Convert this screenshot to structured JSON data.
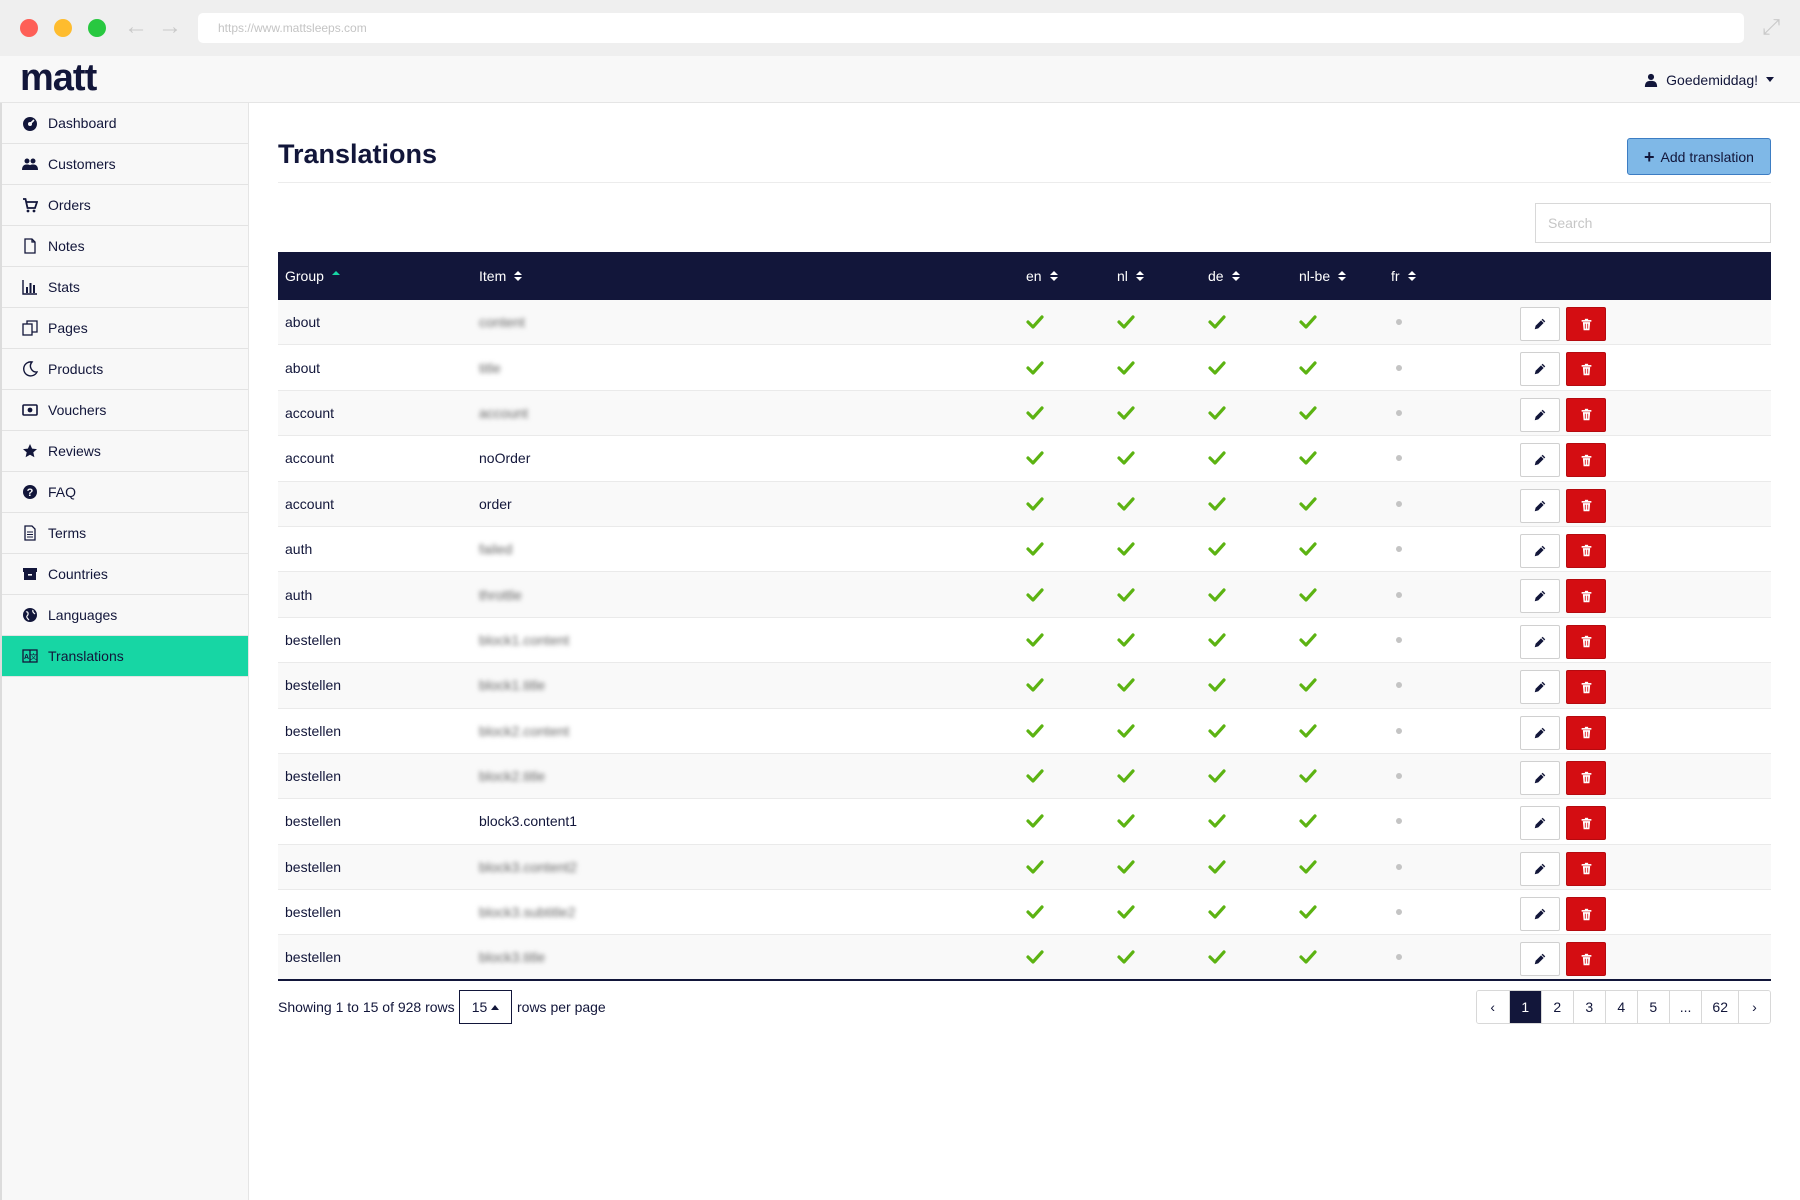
{
  "browser": {
    "url": "https://www.mattsleeps.com"
  },
  "header": {
    "logo": "matt",
    "greeting": "Goedemiddag!"
  },
  "sidebar": {
    "items": [
      {
        "label": "Dashboard",
        "icon": "dashboard-icon"
      },
      {
        "label": "Customers",
        "icon": "users-icon"
      },
      {
        "label": "Orders",
        "icon": "cart-icon"
      },
      {
        "label": "Notes",
        "icon": "file-icon"
      },
      {
        "label": "Stats",
        "icon": "bar-chart-icon"
      },
      {
        "label": "Pages",
        "icon": "pages-icon"
      },
      {
        "label": "Products",
        "icon": "moon-icon"
      },
      {
        "label": "Vouchers",
        "icon": "money-icon"
      },
      {
        "label": "Reviews",
        "icon": "star-icon"
      },
      {
        "label": "FAQ",
        "icon": "question-icon"
      },
      {
        "label": "Terms",
        "icon": "document-icon"
      },
      {
        "label": "Countries",
        "icon": "archive-icon"
      },
      {
        "label": "Languages",
        "icon": "globe-icon"
      },
      {
        "label": "Translations",
        "icon": "language-icon",
        "active": true
      }
    ]
  },
  "main": {
    "title": "Translations",
    "add_button": "Add translation",
    "search_placeholder": "Search"
  },
  "table": {
    "columns": [
      "Group",
      "Item",
      "en",
      "nl",
      "de",
      "nl-be",
      "fr"
    ],
    "rows": [
      {
        "group": "about",
        "item": "content",
        "blurred": true
      },
      {
        "group": "about",
        "item": "title",
        "blurred": true
      },
      {
        "group": "account",
        "item": "account",
        "blurred": true
      },
      {
        "group": "account",
        "item": "noOrder",
        "blurred": false
      },
      {
        "group": "account",
        "item": "order",
        "blurred": false
      },
      {
        "group": "auth",
        "item": "failed",
        "blurred": true
      },
      {
        "group": "auth",
        "item": "throttle",
        "blurred": true
      },
      {
        "group": "bestellen",
        "item": "block1.content",
        "blurred": true
      },
      {
        "group": "bestellen",
        "item": "block1.title",
        "blurred": true
      },
      {
        "group": "bestellen",
        "item": "block2.content",
        "blurred": true
      },
      {
        "group": "bestellen",
        "item": "block2.title",
        "blurred": true
      },
      {
        "group": "bestellen",
        "item": "block3.content1",
        "blurred": false
      },
      {
        "group": "bestellen",
        "item": "block3.content2",
        "blurred": true
      },
      {
        "group": "bestellen",
        "item": "block3.subtitle2",
        "blurred": true
      },
      {
        "group": "bestellen",
        "item": "block3.title",
        "blurred": true
      }
    ],
    "colors": {
      "header_bg": "#12163a",
      "check": "#5cb312",
      "delete": "#d40d12",
      "accent": "#17d6a4"
    }
  },
  "footer": {
    "showing": "Showing 1 to 15 of 928 rows",
    "page_size": "15",
    "rows_per_page": "rows per page",
    "pages": [
      "‹",
      "1",
      "2",
      "3",
      "4",
      "5",
      "...",
      "62",
      "›"
    ],
    "current_page": "1"
  }
}
